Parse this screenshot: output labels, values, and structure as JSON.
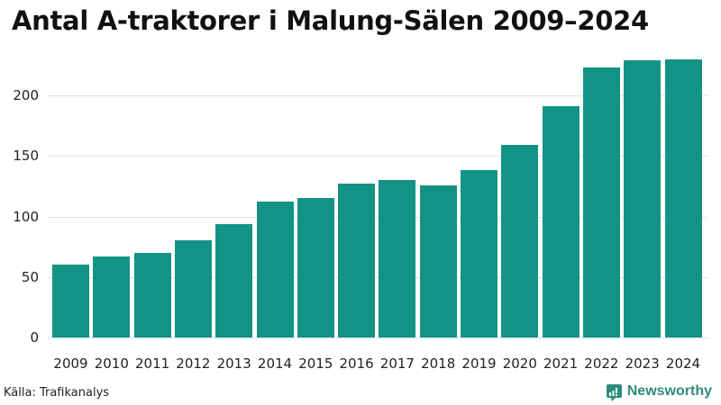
{
  "title": "Antal A-traktorer i Malung-Sälen 2009–2024",
  "source": "Källa: Trafikanalys",
  "brand": {
    "name": "Newsworthy",
    "icon": "bar-chart-speech-bubble-icon",
    "color": "#2e8b7e"
  },
  "colors": {
    "bar": "#139385",
    "grid": "#e1e1e6"
  },
  "chart_data": {
    "type": "bar",
    "title": "Antal A-traktorer i Malung-Sälen 2009–2024",
    "xlabel": "",
    "ylabel": "",
    "categories": [
      "2009",
      "2010",
      "2011",
      "2012",
      "2013",
      "2014",
      "2015",
      "2016",
      "2017",
      "2018",
      "2019",
      "2020",
      "2021",
      "2022",
      "2023",
      "2024"
    ],
    "values": [
      60,
      67,
      70,
      80,
      94,
      112,
      115,
      127,
      130,
      126,
      138,
      159,
      191,
      223,
      229,
      230
    ],
    "yticks": [
      0,
      50,
      100,
      150,
      200
    ],
    "ylim": [
      0,
      235
    ],
    "grid": true,
    "legend": null,
    "source": "Källa: Trafikanalys"
  }
}
